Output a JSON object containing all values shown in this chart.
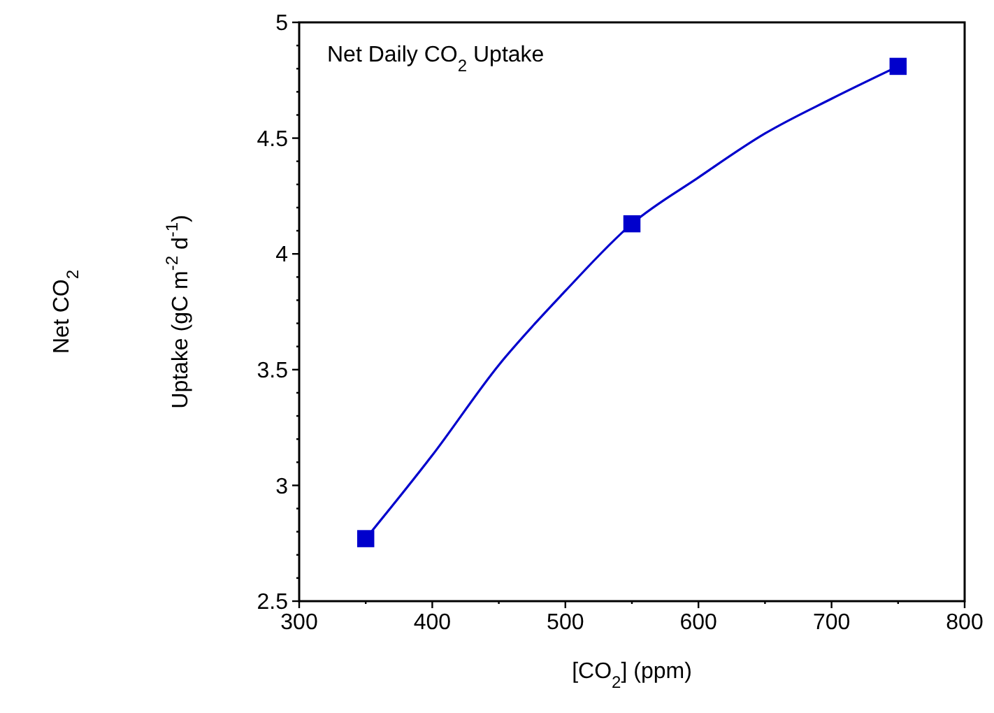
{
  "chart_data": {
    "type": "line",
    "title": "Net Daily CO$_{2}$ Uptake",
    "xlabel": "[CO$_{2}$] (ppm)",
    "ylabel": "Net CO$_{2}$\nUptake (gC m$^{-2}$ d$^{-1}$)",
    "xlim": [
      300,
      800
    ],
    "xticks": [
      300,
      {
        "value": 350,
        "label": null
      },
      400,
      {
        "value": 450,
        "label": null
      },
      500,
      {
        "value": 550,
        "label": null
      },
      600,
      {
        "value": 650,
        "label": null
      },
      700,
      {
        "value": 750,
        "label": null
      },
      800
    ],
    "ylim": [
      2.5,
      5
    ],
    "yticks": [
      2.5,
      {
        "value": 2.6,
        "label": null
      },
      {
        "value": 2.7,
        "label": null
      },
      {
        "value": 2.8,
        "label": null
      },
      {
        "value": 2.9,
        "label": null
      },
      3,
      {
        "value": 3.1,
        "label": null
      },
      {
        "value": 3.2,
        "label": null
      },
      {
        "value": 3.3,
        "label": null
      },
      {
        "value": 3.4,
        "label": null
      },
      3.5,
      {
        "value": 3.6,
        "label": null
      },
      {
        "value": 3.7,
        "label": null
      },
      {
        "value": 3.8,
        "label": null
      },
      {
        "value": 3.9,
        "label": null
      },
      4,
      {
        "value": 4.1,
        "label": null
      },
      {
        "value": 4.2,
        "label": null
      },
      {
        "value": 4.3,
        "label": null
      },
      {
        "value": 4.4,
        "label": null
      },
      4.5,
      {
        "value": 4.6,
        "label": null
      },
      {
        "value": 4.7,
        "label": null
      },
      {
        "value": 4.8,
        "label": null
      },
      {
        "value": 4.9,
        "label": null
      },
      5
    ],
    "grid": false,
    "series": [
      {
        "color": "#0000cc",
        "marker": "none",
        "line_style": "solid",
        "x": [
          350,
          400,
          450,
          500,
          550,
          600,
          650,
          700,
          750
        ],
        "values": [
          2.77,
          3.13,
          3.52,
          3.84,
          4.13,
          4.33,
          4.52,
          4.67,
          4.81
        ]
      },
      {
        "type": "scatter",
        "color": "#0000cc",
        "marker": "square",
        "x": [
          350,
          550,
          750
        ],
        "values": [
          2.77,
          4.13,
          4.81
        ]
      }
    ]
  }
}
